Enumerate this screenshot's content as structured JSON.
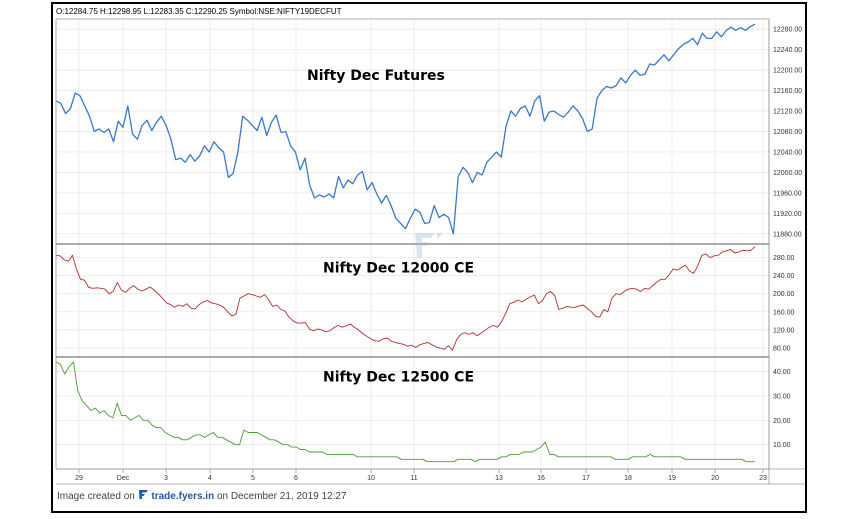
{
  "header": {
    "ohlc_text": "O:12284.75 H:12298.95 L:12283.35 C:12290.25 Symbol:NSE:NIFTY19DECFUT"
  },
  "footer": {
    "prefix": "Image created on",
    "brand": "trade.fyers.in",
    "suffix": "on December 21, 2019 12:27"
  },
  "colors": {
    "futures": "#3a78c9",
    "ce12000": "#b03030",
    "ce12500": "#4a9a3a",
    "grid": "#e6e6e6"
  },
  "chart_data": [
    {
      "type": "line",
      "title": "Nifty Dec Futures",
      "ylim": [
        11860,
        12300
      ],
      "yticks": [
        11880,
        11920,
        11960,
        12000,
        12040,
        12080,
        12120,
        12160,
        12200,
        12240,
        12280
      ],
      "ytick_labels": [
        "11880.00",
        "11920.00",
        "11960.00",
        "12000.00",
        "12040.00",
        "12080.00",
        "12120.00",
        "12160.00",
        "12200.00",
        "12240.00",
        "12280.00"
      ],
      "x_labels": [
        "29",
        "Dec",
        "3",
        "4",
        "5",
        "6",
        "10",
        "11",
        "13",
        "16",
        "17",
        "18",
        "19",
        "20",
        "23"
      ],
      "values": [
        12140,
        12135,
        12115,
        12125,
        12155,
        12150,
        12130,
        12110,
        12080,
        12085,
        12078,
        12085,
        12060,
        12100,
        12088,
        12130,
        12075,
        12065,
        12092,
        12102,
        12082,
        12098,
        12110,
        12092,
        12065,
        12025,
        12028,
        12020,
        12035,
        12022,
        12032,
        12052,
        12040,
        12060,
        12048,
        12040,
        11990,
        11998,
        12040,
        12110,
        12102,
        12092,
        12082,
        12108,
        12072,
        12098,
        12112,
        12078,
        12080,
        12052,
        12040,
        12005,
        12028,
        11975,
        11950,
        11956,
        11952,
        11958,
        11950,
        11992,
        11970,
        11985,
        11978,
        11995,
        12002,
        11966,
        11980,
        11958,
        11940,
        11955,
        11935,
        11910,
        11900,
        11890,
        11910,
        11928,
        11922,
        11900,
        11902,
        11935,
        11912,
        11918,
        11912,
        11880,
        11992,
        12010,
        12000,
        11980,
        12000,
        11995,
        12020,
        12030,
        12040,
        12030,
        12090,
        12120,
        12110,
        12125,
        12130,
        12110,
        12140,
        12150,
        12100,
        12118,
        12120,
        12113,
        12108,
        12118,
        12130,
        12120,
        12105,
        12080,
        12085,
        12145,
        12160,
        12168,
        12165,
        12170,
        12185,
        12175,
        12190,
        12200,
        12190,
        12192,
        12212,
        12210,
        12220,
        12230,
        12218,
        12230,
        12242,
        12250,
        12255,
        12262,
        12250,
        12272,
        12262,
        12262,
        12275,
        12265,
        12278,
        12284,
        12278,
        12283,
        12278,
        12285,
        12290
      ]
    },
    {
      "type": "line",
      "title": "Nifty Dec 12000 CE",
      "ylim": [
        60,
        310
      ],
      "yticks": [
        80,
        120,
        160,
        200,
        240,
        280
      ],
      "ytick_labels": [
        "80.00",
        "120.00",
        "160.00",
        "200.00",
        "240.00",
        "280.00"
      ],
      "values": [
        285,
        284,
        275,
        272,
        285,
        255,
        232,
        230,
        214,
        212,
        213,
        212,
        210,
        200,
        205,
        225,
        208,
        203,
        212,
        218,
        210,
        206,
        210,
        215,
        208,
        200,
        190,
        180,
        176,
        170,
        175,
        172,
        178,
        168,
        166,
        176,
        182,
        185,
        180,
        178,
        175,
        170,
        160,
        151,
        154,
        190,
        195,
        200,
        198,
        195,
        192,
        198,
        187,
        172,
        175,
        165,
        162,
        148,
        140,
        135,
        135,
        136,
        122,
        118,
        122,
        120,
        116,
        118,
        125,
        130,
        126,
        129,
        133,
        126,
        120,
        112,
        106,
        100,
        96,
        95,
        100,
        102,
        95,
        92,
        90,
        88,
        84,
        86,
        81,
        87,
        90,
        92,
        87,
        82,
        80,
        77,
        85,
        75,
        98,
        110,
        114,
        110,
        114,
        107,
        113,
        119,
        126,
        130,
        126,
        138,
        156,
        178,
        181,
        186,
        182,
        188,
        193,
        197,
        178,
        185,
        200,
        205,
        196,
        165,
        168,
        172,
        170,
        170,
        173,
        175,
        167,
        160,
        150,
        148,
        165,
        160,
        190,
        200,
        198,
        205,
        210,
        212,
        210,
        205,
        212,
        210,
        218,
        226,
        232,
        232,
        242,
        255,
        252,
        258,
        263,
        250,
        245,
        262,
        285,
        288,
        280,
        284,
        285,
        292,
        295,
        298,
        290,
        292,
        296,
        295,
        296,
        304
      ]
    },
    {
      "type": "line",
      "title": "Nifty Dec 12500 CE",
      "ylim": [
        0,
        46
      ],
      "yticks": [
        10,
        20,
        30,
        40
      ],
      "ytick_labels": [
        "10.00",
        "20.00",
        "30.00",
        "40.00"
      ],
      "values": [
        44,
        43,
        39,
        42,
        44,
        32,
        28,
        26,
        24,
        25,
        23,
        24,
        22,
        21,
        27,
        22,
        22,
        20,
        21,
        22,
        20,
        20,
        18,
        17,
        17,
        15,
        14,
        13,
        13,
        12,
        12,
        13,
        14,
        14,
        13,
        14,
        15,
        13,
        13,
        12,
        11,
        10,
        10,
        16,
        15,
        15,
        15,
        14,
        13,
        12,
        12,
        11,
        10,
        10,
        9,
        9,
        8,
        8,
        7,
        7,
        7,
        7,
        6,
        6,
        6,
        6,
        6,
        6,
        6,
        5,
        5,
        5,
        5,
        5,
        5,
        5,
        5,
        5,
        5,
        4,
        4,
        4,
        4,
        4,
        4,
        3,
        3,
        3,
        3,
        3,
        3,
        3,
        4,
        4,
        4,
        4,
        3,
        4,
        4,
        4,
        4,
        4,
        5,
        5,
        6,
        6,
        6,
        7,
        7,
        7,
        8,
        9,
        11,
        6,
        6,
        5,
        5,
        5,
        5,
        5,
        5,
        5,
        5,
        5,
        5,
        5,
        5,
        5,
        4,
        4,
        4,
        4,
        5,
        5,
        5,
        5,
        6,
        5,
        5,
        5,
        5,
        5,
        5,
        5,
        4,
        4,
        4,
        4,
        4,
        4,
        4,
        4,
        4,
        4,
        4,
        4,
        4,
        4,
        3,
        3,
        3
      ]
    }
  ]
}
